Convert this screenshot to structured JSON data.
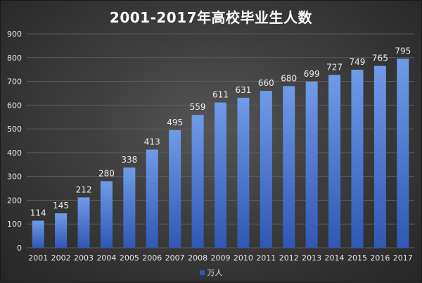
{
  "colors": {
    "bar_top": "#6f9be8",
    "bar_bottom": "#2f58b4",
    "grid": "#5c5c5c",
    "tick_text": "#e6e6e6",
    "label_text": "#ececec"
  },
  "chart_data": {
    "type": "bar",
    "title": "2001-2017年高校毕业生人数",
    "categories": [
      "2001",
      "2002",
      "2003",
      "2004",
      "2005",
      "2006",
      "2007",
      "2008",
      "2009",
      "2010",
      "2011",
      "2012",
      "2013",
      "2014",
      "2015",
      "2016",
      "2017"
    ],
    "series": [
      {
        "name": "万人",
        "values": [
          114,
          145,
          212,
          280,
          338,
          413,
          495,
          559,
          611,
          631,
          660,
          680,
          699,
          727,
          749,
          765,
          795
        ]
      }
    ],
    "ylim": [
      0,
      900
    ],
    "yticks": [
      0,
      100,
      200,
      300,
      400,
      500,
      600,
      700,
      800,
      900
    ],
    "grid": true,
    "legend": "bottom",
    "data_labels": true
  }
}
